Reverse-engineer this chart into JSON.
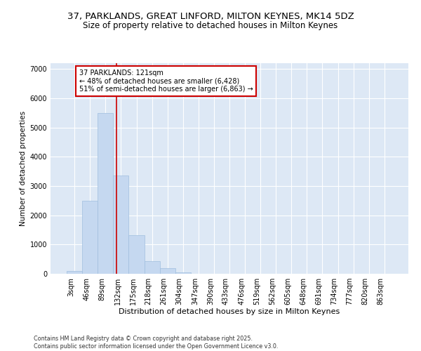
{
  "title_line1": "37, PARKLANDS, GREAT LINFORD, MILTON KEYNES, MK14 5DZ",
  "title_line2": "Size of property relative to detached houses in Milton Keynes",
  "xlabel": "Distribution of detached houses by size in Milton Keynes",
  "ylabel": "Number of detached properties",
  "categories": [
    "3sqm",
    "46sqm",
    "89sqm",
    "132sqm",
    "175sqm",
    "218sqm",
    "261sqm",
    "304sqm",
    "347sqm",
    "390sqm",
    "433sqm",
    "476sqm",
    "519sqm",
    "562sqm",
    "605sqm",
    "648sqm",
    "691sqm",
    "734sqm",
    "777sqm",
    "820sqm",
    "863sqm"
  ],
  "values": [
    90,
    2500,
    5500,
    3350,
    1330,
    430,
    200,
    60,
    10,
    2,
    0,
    0,
    0,
    0,
    0,
    0,
    0,
    0,
    0,
    0,
    0
  ],
  "bar_color": "#c5d8f0",
  "bar_edge_color": "#a0bede",
  "vline_color": "#cc0000",
  "vline_x": 2.72,
  "annotation_title": "37 PARKLANDS: 121sqm",
  "annotation_line1": "← 48% of detached houses are smaller (6,428)",
  "annotation_line2": "51% of semi-detached houses are larger (6,863) →",
  "annotation_box_color": "white",
  "annotation_box_edge": "#cc0000",
  "ylim": [
    0,
    7200
  ],
  "yticks": [
    0,
    1000,
    2000,
    3000,
    4000,
    5000,
    6000,
    7000
  ],
  "background_color": "#dde8f5",
  "grid_color": "white",
  "title_fontsize": 9.5,
  "subtitle_fontsize": 8.5,
  "footer_line1": "Contains HM Land Registry data © Crown copyright and database right 2025.",
  "footer_line2": "Contains public sector information licensed under the Open Government Licence v3.0."
}
